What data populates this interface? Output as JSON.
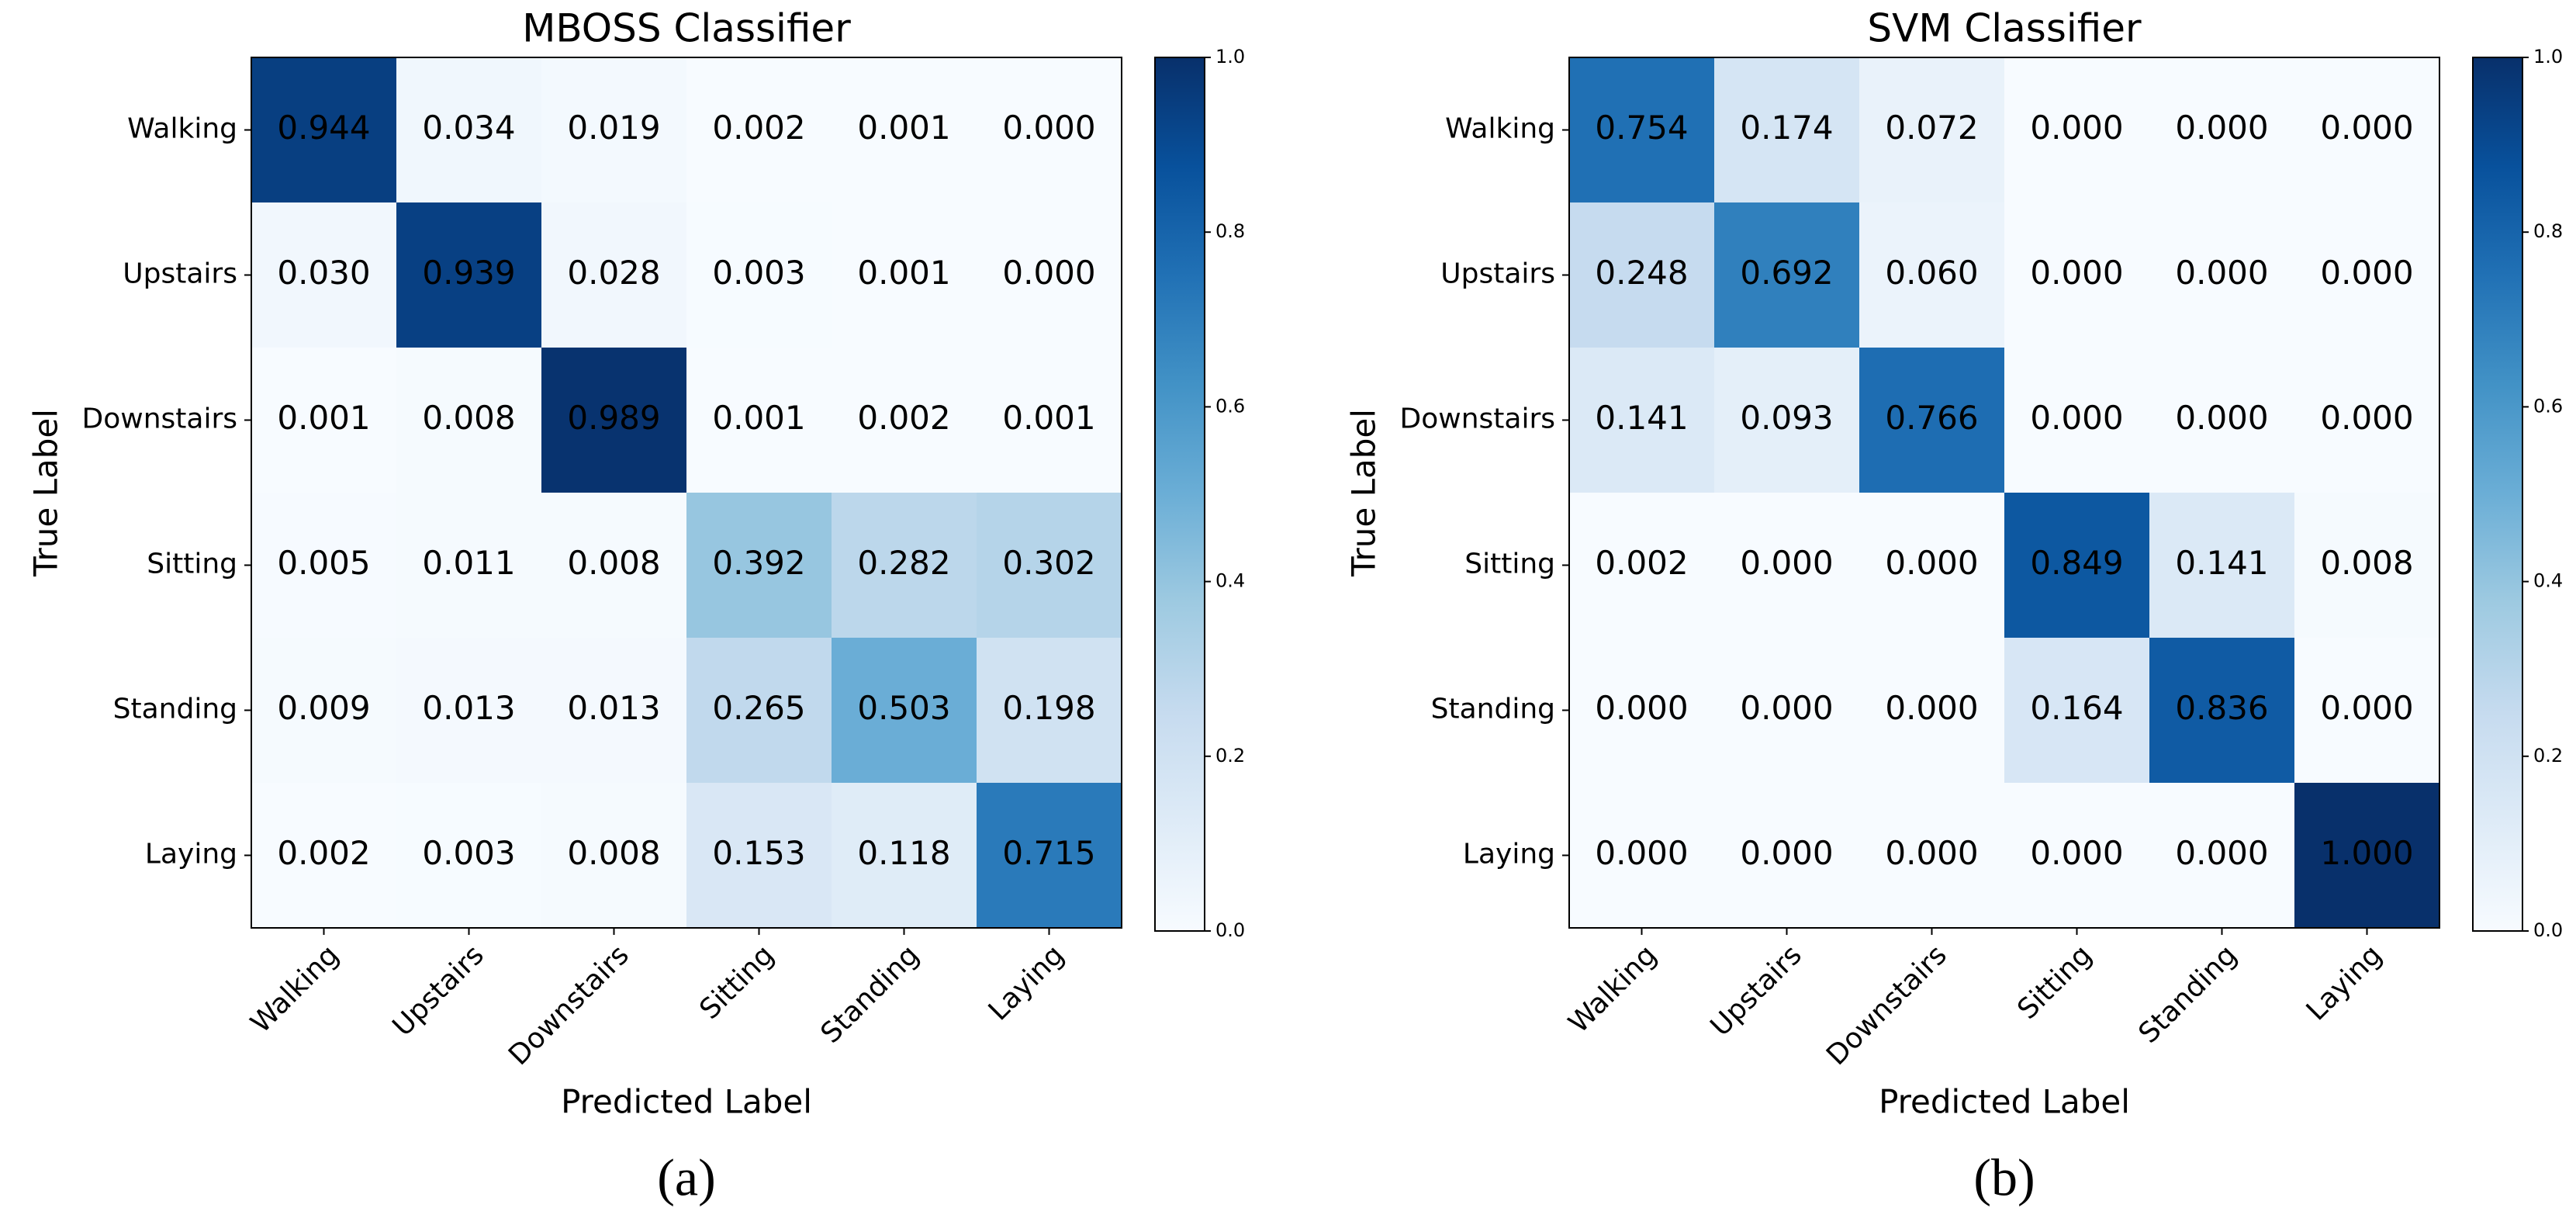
{
  "chart_data": [
    {
      "type": "heatmap",
      "title": "MBOSS Classifier",
      "caption": "(a)",
      "xlabel": "Predicted Label",
      "ylabel": "True Label",
      "x": [
        "Walking",
        "Upstairs",
        "Downstairs",
        "Sitting",
        "Standing",
        "Laying"
      ],
      "y": [
        "Walking",
        "Upstairs",
        "Downstairs",
        "Sitting",
        "Standing",
        "Laying"
      ],
      "values": [
        [
          0.944,
          0.034,
          0.019,
          0.002,
          0.001,
          0
        ],
        [
          0.03,
          0.939,
          0.028,
          0.003,
          0.001,
          0
        ],
        [
          0.001,
          0.008,
          0.989,
          0.001,
          0.002,
          0.001
        ],
        [
          0.005,
          0.011,
          0.008,
          0.392,
          0.282,
          0.302
        ],
        [
          0.009,
          0.013,
          0.013,
          0.265,
          0.503,
          0.198
        ],
        [
          0.002,
          0.003,
          0.008,
          0.153,
          0.118,
          0.715
        ]
      ],
      "value_labels": [
        [
          "0.944",
          "0.034",
          "0.019",
          "0.002",
          "0.001",
          "0.000"
        ],
        [
          "0.030",
          "0.939",
          "0.028",
          "0.003",
          "0.001",
          "0.000"
        ],
        [
          "0.001",
          "0.008",
          "0.989",
          "0.001",
          "0.002",
          "0.001"
        ],
        [
          "0.005",
          "0.011",
          "0.008",
          "0.392",
          "0.282",
          "0.302"
        ],
        [
          "0.009",
          "0.013",
          "0.013",
          "0.265",
          "0.503",
          "0.198"
        ],
        [
          "0.002",
          "0.003",
          "0.008",
          "0.153",
          "0.118",
          "0.715"
        ]
      ],
      "clim": [
        0,
        1
      ],
      "cticks": [
        {
          "value": 0,
          "label": "0.0"
        },
        0.2,
        0.4,
        0.6,
        0.8,
        {
          "value": 1,
          "label": "1.0"
        }
      ],
      "colormap": [
        "#f7fbff",
        "#deebf7",
        "#c6dbef",
        "#9ecae1",
        "#6baed6",
        "#4292c6",
        "#2171b5",
        "#08519c",
        "#08306b"
      ]
    },
    {
      "type": "heatmap",
      "title": "SVM Classifier",
      "caption": "(b)",
      "xlabel": "Predicted Label",
      "ylabel": "True Label",
      "x": [
        "Walking",
        "Upstairs",
        "Downstairs",
        "Sitting",
        "Standing",
        "Laying"
      ],
      "y": [
        "Walking",
        "Upstairs",
        "Downstairs",
        "Sitting",
        "Standing",
        "Laying"
      ],
      "values": [
        [
          0.754,
          0.174,
          0.072,
          0,
          0,
          0
        ],
        [
          0.248,
          0.692,
          0.06,
          0,
          0,
          0
        ],
        [
          0.141,
          0.093,
          0.766,
          0,
          0,
          0
        ],
        [
          0.002,
          0,
          0,
          0.849,
          0.141,
          0.008
        ],
        [
          0,
          0,
          0,
          0.164,
          0.836,
          0
        ],
        [
          0,
          0,
          0,
          0,
          0,
          1
        ]
      ],
      "value_labels": [
        [
          "0.754",
          "0.174",
          "0.072",
          "0.000",
          "0.000",
          "0.000"
        ],
        [
          "0.248",
          "0.692",
          "0.060",
          "0.000",
          "0.000",
          "0.000"
        ],
        [
          "0.141",
          "0.093",
          "0.766",
          "0.000",
          "0.000",
          "0.000"
        ],
        [
          "0.002",
          "0.000",
          "0.000",
          "0.849",
          "0.141",
          "0.008"
        ],
        [
          "0.000",
          "0.000",
          "0.000",
          "0.164",
          "0.836",
          "0.000"
        ],
        [
          "0.000",
          "0.000",
          "0.000",
          "0.000",
          "0.000",
          "1.000"
        ]
      ],
      "clim": [
        0,
        1
      ],
      "cticks": [
        {
          "value": 0,
          "label": "0.0"
        },
        0.2,
        0.4,
        0.6,
        0.8,
        {
          "value": 1,
          "label": "1.0"
        }
      ],
      "colormap": [
        "#f7fbff",
        "#deebf7",
        "#c6dbef",
        "#9ecae1",
        "#6baed6",
        "#4292c6",
        "#2171b5",
        "#08519c",
        "#08306b"
      ]
    }
  ]
}
